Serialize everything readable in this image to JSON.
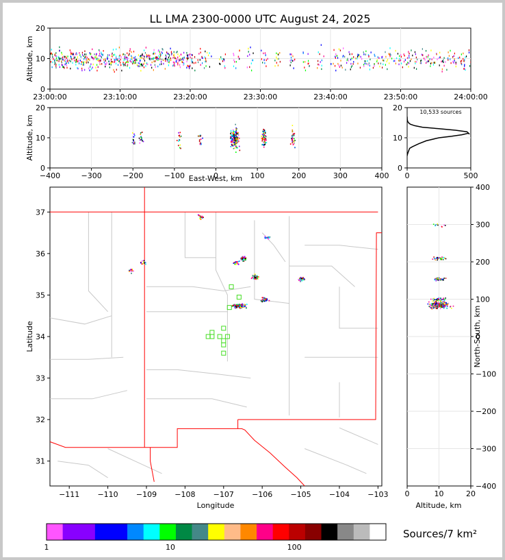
{
  "title": "LL LMA 2300-0000 UTC August 24, 2025",
  "colorbar": {
    "label": "Sources/7 km²",
    "tick_labels": [
      "1",
      "10",
      "100"
    ],
    "colors": [
      "#ff55ff",
      "#8800ff",
      "#8800ff",
      "#0000ff",
      "#0000ff",
      "#0088ff",
      "#00ffff",
      "#00ff00",
      "#008844",
      "#448888",
      "#ffff00",
      "#ffbb88",
      "#ff8800",
      "#ff0088",
      "#ff0000",
      "#bb0000",
      "#880000",
      "#000000",
      "#888888",
      "#bbbbbb",
      "#ffffff"
    ]
  },
  "chart_data": [
    {
      "type": "scatter",
      "name": "time-height",
      "ylabel": "Altitude, km",
      "xlim": [
        "23:00:00",
        "24:00:00"
      ],
      "ylim": [
        0,
        20
      ],
      "x_tick_labels": [
        "23:00:00",
        "23:10:00",
        "23:20:00",
        "23:30:00",
        "23:40:00",
        "23:50:00",
        "24:00:00"
      ],
      "y_tick_labels": [
        "0",
        "10",
        "20"
      ],
      "activity_minutes": [
        0,
        1,
        2,
        3,
        4,
        5,
        6,
        7,
        8,
        9,
        10,
        11,
        12,
        13,
        14,
        15,
        16,
        17,
        18,
        19,
        20,
        21,
        22,
        24,
        26,
        28,
        30,
        32,
        34,
        36,
        38,
        40,
        41,
        42,
        43,
        44,
        45,
        46,
        47,
        48,
        49,
        50,
        51,
        52,
        53,
        54,
        55,
        56,
        57,
        58,
        59
      ]
    },
    {
      "type": "scatter",
      "name": "east-west-altitude",
      "xlabel": "East-West, km",
      "ylabel": "Altitude, km",
      "xlim": [
        -400,
        400
      ],
      "ylim": [
        0,
        20
      ],
      "x_tick_labels": [
        "−400",
        "−300",
        "−200",
        "−100",
        "0",
        "100",
        "200",
        "300",
        "400"
      ],
      "y_tick_labels": [
        "0",
        "10",
        "20"
      ],
      "clusters_km": [
        -200,
        -180,
        -90,
        -40,
        45,
        115,
        185
      ]
    },
    {
      "type": "line",
      "name": "altitude-histogram",
      "annotation": "10,533 sources",
      "xlim": [
        0,
        500
      ],
      "ylim": [
        0,
        20
      ],
      "x_tick_labels": [
        "0",
        "500"
      ],
      "y_tick_labels": [
        "0",
        "10",
        "20"
      ],
      "x": [
        0,
        2,
        10,
        20,
        40,
        90,
        150,
        250,
        350,
        430,
        480,
        490,
        470,
        380,
        250,
        120,
        60,
        25,
        10,
        4,
        1,
        0
      ],
      "y": [
        4,
        4.5,
        5.5,
        6.5,
        7,
        8,
        9,
        10,
        10.5,
        11,
        11.5,
        11.2,
        12,
        12.5,
        13,
        13.5,
        14,
        14.5,
        15,
        15.5,
        16,
        17
      ]
    },
    {
      "type": "scatter",
      "name": "plan-view",
      "xlabel": "Longitude",
      "ylabel": "Latitude",
      "xlim": [
        -111.5,
        -102.9
      ],
      "ylim": [
        30.4,
        37.6
      ],
      "x_tick_labels": [
        "−111",
        "−110",
        "−109",
        "−108",
        "−107",
        "−106",
        "−105",
        "−104",
        "−103"
      ],
      "y_tick_labels": [
        "31",
        "32",
        "33",
        "34",
        "35",
        "36",
        "37"
      ],
      "stations": [
        [
          -107.3,
          34.1
        ],
        [
          -107.0,
          34.2
        ],
        [
          -107.1,
          34.0
        ],
        [
          -106.9,
          34.0
        ],
        [
          -107.0,
          33.9
        ],
        [
          -107.4,
          34.0
        ],
        [
          -107.0,
          33.8
        ],
        [
          -107.0,
          33.6
        ],
        [
          -106.8,
          35.2
        ],
        [
          -106.6,
          34.95
        ],
        [
          -106.85,
          34.7
        ],
        [
          -107.3,
          34.0
        ]
      ],
      "clusters": [
        [
          -106.6,
          34.75
        ],
        [
          -106.5,
          35.9
        ],
        [
          -106.2,
          35.45
        ],
        [
          -105.95,
          34.9
        ],
        [
          -105.0,
          35.4
        ],
        [
          -107.6,
          36.9
        ],
        [
          -109.4,
          35.6
        ],
        [
          -109.1,
          35.8
        ],
        [
          -106.7,
          35.8
        ],
        [
          -105.9,
          36.4
        ]
      ]
    },
    {
      "type": "scatter",
      "name": "north-south-altitude",
      "xlabel": "Altitude, km",
      "ylabel": "North-South, km",
      "xlim": [
        0,
        20
      ],
      "ylim": [
        -400,
        400
      ],
      "x_tick_labels": [
        "0",
        "10",
        "20"
      ],
      "y_tick_labels": [
        "−400",
        "−300",
        "−200",
        "−100",
        "0",
        "100",
        "200",
        "300",
        "400"
      ],
      "clusters_km": [
        85,
        100,
        155,
        210,
        300
      ]
    }
  ]
}
